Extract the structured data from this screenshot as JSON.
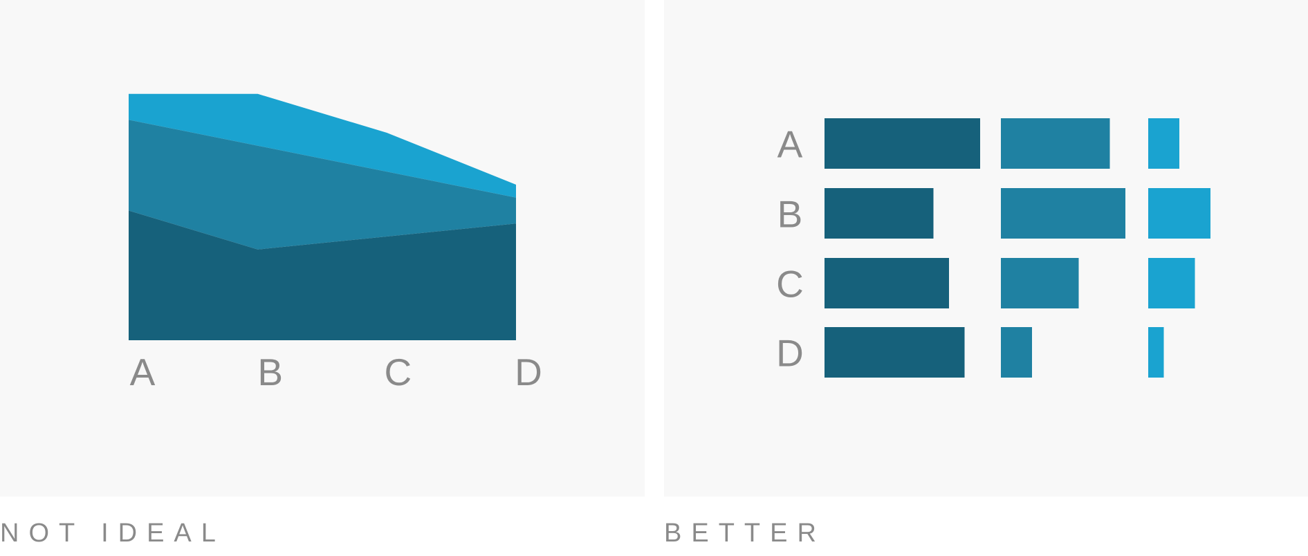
{
  "captions": {
    "left": "NOT IDEAL",
    "right": "BETTER"
  },
  "colors": {
    "series": [
      "#16617b",
      "#1f81a2",
      "#1aa3d0"
    ],
    "panel_background": "#f8f8f8",
    "label": "#8a8a8a"
  },
  "chart_data": [
    {
      "type": "area",
      "stacked": true,
      "categories": [
        "A",
        "B",
        "C",
        "D"
      ],
      "series": [
        {
          "values": [
            5,
            3.5,
            4,
            4.5
          ]
        },
        {
          "values": [
            3.5,
            4,
            2.5,
            1
          ]
        },
        {
          "values": [
            1,
            2,
            1.5,
            0.5
          ]
        }
      ],
      "ylim": [
        0,
        10
      ],
      "title": "",
      "xlabel": "",
      "ylabel": "",
      "grid": false,
      "legend": "none"
    },
    {
      "type": "bar",
      "orientation": "horizontal",
      "layout": "small-multiples",
      "categories": [
        "A",
        "B",
        "C",
        "D"
      ],
      "series": [
        {
          "values": [
            5,
            3.5,
            4,
            4.5
          ]
        },
        {
          "values": [
            3.5,
            4,
            2.5,
            1
          ]
        },
        {
          "values": [
            1,
            2,
            1.5,
            0.5
          ]
        }
      ],
      "title": "",
      "xlabel": "",
      "ylabel": "",
      "grid": false,
      "legend": "none"
    }
  ]
}
